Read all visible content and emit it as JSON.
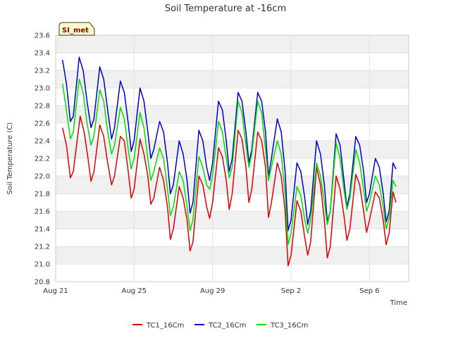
{
  "chart_data": {
    "type": "line",
    "title": "Soil Temperature at -16cm",
    "xlabel": "Time",
    "ylabel": "Soil Temperature (C)",
    "badge": "SI_met",
    "xlim": [
      0,
      18
    ],
    "ylim": [
      20.8,
      23.6
    ],
    "y_ticks": [
      20.8,
      21.0,
      21.2,
      21.4,
      21.6,
      21.8,
      22.0,
      22.2,
      22.4,
      22.6,
      22.8,
      23.0,
      23.2,
      23.4,
      23.6
    ],
    "x_ticks": [
      {
        "day": 0,
        "label": "Aug 21"
      },
      {
        "day": 4,
        "label": "Aug 25"
      },
      {
        "day": 8,
        "label": "Aug 29"
      },
      {
        "day": 12,
        "label": "Sep 2"
      },
      {
        "day": 16,
        "label": "Sep 6"
      }
    ],
    "grid": true,
    "legend_position": "bottom",
    "series": [
      {
        "name": "TC1_16Cm",
        "color": "#dd0000",
        "points": [
          [
            0.35,
            22.55
          ],
          [
            0.55,
            22.35
          ],
          [
            0.75,
            21.98
          ],
          [
            0.9,
            22.05
          ],
          [
            1.25,
            22.68
          ],
          [
            1.45,
            22.5
          ],
          [
            1.65,
            22.2
          ],
          [
            1.8,
            21.94
          ],
          [
            1.95,
            22.05
          ],
          [
            2.25,
            22.58
          ],
          [
            2.45,
            22.45
          ],
          [
            2.65,
            22.15
          ],
          [
            2.85,
            21.9
          ],
          [
            3.0,
            22.0
          ],
          [
            3.3,
            22.45
          ],
          [
            3.5,
            22.4
          ],
          [
            3.7,
            22.05
          ],
          [
            3.85,
            21.75
          ],
          [
            4.0,
            21.85
          ],
          [
            4.3,
            22.42
          ],
          [
            4.5,
            22.25
          ],
          [
            4.7,
            22.0
          ],
          [
            4.85,
            21.68
          ],
          [
            5.0,
            21.75
          ],
          [
            5.3,
            22.1
          ],
          [
            5.5,
            21.95
          ],
          [
            5.7,
            21.65
          ],
          [
            5.85,
            21.28
          ],
          [
            6.0,
            21.4
          ],
          [
            6.3,
            21.88
          ],
          [
            6.5,
            21.75
          ],
          [
            6.7,
            21.5
          ],
          [
            6.85,
            21.15
          ],
          [
            7.0,
            21.25
          ],
          [
            7.3,
            22.0
          ],
          [
            7.5,
            21.9
          ],
          [
            7.7,
            21.65
          ],
          [
            7.85,
            21.52
          ],
          [
            8.0,
            21.7
          ],
          [
            8.3,
            22.32
          ],
          [
            8.5,
            22.22
          ],
          [
            8.7,
            21.95
          ],
          [
            8.85,
            21.62
          ],
          [
            9.0,
            21.8
          ],
          [
            9.3,
            22.52
          ],
          [
            9.5,
            22.42
          ],
          [
            9.7,
            22.1
          ],
          [
            9.85,
            21.7
          ],
          [
            10.0,
            21.85
          ],
          [
            10.3,
            22.5
          ],
          [
            10.5,
            22.4
          ],
          [
            10.7,
            22.1
          ],
          [
            10.85,
            21.53
          ],
          [
            11.0,
            21.7
          ],
          [
            11.3,
            22.15
          ],
          [
            11.5,
            22.0
          ],
          [
            11.7,
            21.6
          ],
          [
            11.85,
            20.98
          ],
          [
            12.0,
            21.1
          ],
          [
            12.3,
            21.72
          ],
          [
            12.5,
            21.6
          ],
          [
            12.7,
            21.3
          ],
          [
            12.85,
            21.1
          ],
          [
            13.0,
            21.25
          ],
          [
            13.3,
            22.1
          ],
          [
            13.5,
            21.9
          ],
          [
            13.7,
            21.5
          ],
          [
            13.85,
            21.07
          ],
          [
            14.0,
            21.2
          ],
          [
            14.3,
            22.0
          ],
          [
            14.5,
            21.85
          ],
          [
            14.7,
            21.55
          ],
          [
            14.85,
            21.27
          ],
          [
            15.0,
            21.4
          ],
          [
            15.3,
            22.02
          ],
          [
            15.5,
            21.9
          ],
          [
            15.7,
            21.6
          ],
          [
            15.85,
            21.36
          ],
          [
            16.0,
            21.5
          ],
          [
            16.3,
            21.82
          ],
          [
            16.5,
            21.75
          ],
          [
            16.7,
            21.5
          ],
          [
            16.85,
            21.22
          ],
          [
            17.0,
            21.35
          ],
          [
            17.2,
            21.82
          ],
          [
            17.35,
            21.7
          ]
        ]
      },
      {
        "name": "TC2_16Cm",
        "color": "#0000cc",
        "points": [
          [
            0.35,
            23.32
          ],
          [
            0.55,
            23.05
          ],
          [
            0.75,
            22.62
          ],
          [
            0.9,
            22.68
          ],
          [
            1.2,
            23.35
          ],
          [
            1.4,
            23.2
          ],
          [
            1.6,
            22.85
          ],
          [
            1.8,
            22.55
          ],
          [
            1.95,
            22.65
          ],
          [
            2.25,
            23.24
          ],
          [
            2.45,
            23.1
          ],
          [
            2.65,
            22.75
          ],
          [
            2.85,
            22.42
          ],
          [
            3.0,
            22.55
          ],
          [
            3.3,
            23.08
          ],
          [
            3.5,
            22.95
          ],
          [
            3.7,
            22.6
          ],
          [
            3.85,
            22.28
          ],
          [
            4.0,
            22.4
          ],
          [
            4.3,
            23.0
          ],
          [
            4.5,
            22.85
          ],
          [
            4.7,
            22.5
          ],
          [
            4.85,
            22.2
          ],
          [
            5.0,
            22.3
          ],
          [
            5.3,
            22.62
          ],
          [
            5.5,
            22.5
          ],
          [
            5.7,
            22.15
          ],
          [
            5.85,
            21.8
          ],
          [
            6.0,
            21.9
          ],
          [
            6.3,
            22.4
          ],
          [
            6.5,
            22.25
          ],
          [
            6.7,
            21.95
          ],
          [
            6.85,
            21.58
          ],
          [
            7.0,
            21.7
          ],
          [
            7.3,
            22.52
          ],
          [
            7.5,
            22.4
          ],
          [
            7.7,
            22.1
          ],
          [
            7.85,
            21.95
          ],
          [
            8.0,
            22.15
          ],
          [
            8.3,
            22.85
          ],
          [
            8.5,
            22.75
          ],
          [
            8.7,
            22.4
          ],
          [
            8.85,
            22.05
          ],
          [
            9.0,
            22.2
          ],
          [
            9.3,
            22.95
          ],
          [
            9.5,
            22.85
          ],
          [
            9.7,
            22.5
          ],
          [
            9.85,
            22.15
          ],
          [
            10.0,
            22.3
          ],
          [
            10.3,
            22.95
          ],
          [
            10.5,
            22.85
          ],
          [
            10.7,
            22.5
          ],
          [
            10.85,
            22.0
          ],
          [
            11.0,
            22.2
          ],
          [
            11.3,
            22.65
          ],
          [
            11.5,
            22.5
          ],
          [
            11.7,
            22.05
          ],
          [
            11.85,
            21.38
          ],
          [
            12.0,
            21.5
          ],
          [
            12.3,
            22.15
          ],
          [
            12.5,
            22.05
          ],
          [
            12.7,
            21.75
          ],
          [
            12.85,
            21.45
          ],
          [
            13.0,
            21.6
          ],
          [
            13.3,
            22.4
          ],
          [
            13.5,
            22.25
          ],
          [
            13.7,
            21.9
          ],
          [
            13.85,
            21.48
          ],
          [
            14.0,
            21.6
          ],
          [
            14.3,
            22.48
          ],
          [
            14.5,
            22.35
          ],
          [
            14.7,
            21.95
          ],
          [
            14.85,
            21.65
          ],
          [
            15.0,
            21.8
          ],
          [
            15.3,
            22.45
          ],
          [
            15.5,
            22.35
          ],
          [
            15.7,
            22.05
          ],
          [
            15.85,
            21.7
          ],
          [
            16.0,
            21.8
          ],
          [
            16.3,
            22.2
          ],
          [
            16.5,
            22.1
          ],
          [
            16.7,
            21.8
          ],
          [
            16.85,
            21.48
          ],
          [
            17.0,
            21.6
          ],
          [
            17.2,
            22.15
          ],
          [
            17.35,
            22.08
          ]
        ]
      },
      {
        "name": "TC3_16Cm",
        "color": "#00dd00",
        "points": [
          [
            0.35,
            23.05
          ],
          [
            0.55,
            22.75
          ],
          [
            0.75,
            22.42
          ],
          [
            0.9,
            22.5
          ],
          [
            1.2,
            23.1
          ],
          [
            1.4,
            22.95
          ],
          [
            1.6,
            22.6
          ],
          [
            1.8,
            22.35
          ],
          [
            1.95,
            22.45
          ],
          [
            2.25,
            22.98
          ],
          [
            2.45,
            22.85
          ],
          [
            2.65,
            22.5
          ],
          [
            2.85,
            22.25
          ],
          [
            3.0,
            22.35
          ],
          [
            3.3,
            22.78
          ],
          [
            3.5,
            22.65
          ],
          [
            3.7,
            22.3
          ],
          [
            3.85,
            22.08
          ],
          [
            4.0,
            22.2
          ],
          [
            4.3,
            22.72
          ],
          [
            4.5,
            22.55
          ],
          [
            4.7,
            22.2
          ],
          [
            4.85,
            21.95
          ],
          [
            5.0,
            22.05
          ],
          [
            5.3,
            22.32
          ],
          [
            5.5,
            22.2
          ],
          [
            5.7,
            21.85
          ],
          [
            5.85,
            21.55
          ],
          [
            6.0,
            21.65
          ],
          [
            6.3,
            22.05
          ],
          [
            6.5,
            21.95
          ],
          [
            6.7,
            21.65
          ],
          [
            6.85,
            21.38
          ],
          [
            7.0,
            21.5
          ],
          [
            7.3,
            22.22
          ],
          [
            7.5,
            22.1
          ],
          [
            7.7,
            21.9
          ],
          [
            7.85,
            21.85
          ],
          [
            8.0,
            22.0
          ],
          [
            8.3,
            22.62
          ],
          [
            8.5,
            22.5
          ],
          [
            8.7,
            22.2
          ],
          [
            8.85,
            21.98
          ],
          [
            9.0,
            22.1
          ],
          [
            9.3,
            22.85
          ],
          [
            9.5,
            22.72
          ],
          [
            9.7,
            22.35
          ],
          [
            9.85,
            22.1
          ],
          [
            10.0,
            22.25
          ],
          [
            10.3,
            22.85
          ],
          [
            10.5,
            22.72
          ],
          [
            10.7,
            22.3
          ],
          [
            10.85,
            21.95
          ],
          [
            11.0,
            22.1
          ],
          [
            11.3,
            22.4
          ],
          [
            11.5,
            22.25
          ],
          [
            11.7,
            21.8
          ],
          [
            11.85,
            21.22
          ],
          [
            12.0,
            21.35
          ],
          [
            12.3,
            21.88
          ],
          [
            12.5,
            21.78
          ],
          [
            12.7,
            21.5
          ],
          [
            12.85,
            21.35
          ],
          [
            13.0,
            21.5
          ],
          [
            13.3,
            22.15
          ],
          [
            13.5,
            22.0
          ],
          [
            13.7,
            21.7
          ],
          [
            13.85,
            21.45
          ],
          [
            14.0,
            21.6
          ],
          [
            14.3,
            22.38
          ],
          [
            14.5,
            22.2
          ],
          [
            14.7,
            21.85
          ],
          [
            14.85,
            21.62
          ],
          [
            15.0,
            21.75
          ],
          [
            15.3,
            22.3
          ],
          [
            15.5,
            22.15
          ],
          [
            15.7,
            21.85
          ],
          [
            15.85,
            21.6
          ],
          [
            16.0,
            21.7
          ],
          [
            16.3,
            22.0
          ],
          [
            16.5,
            21.9
          ],
          [
            16.7,
            21.65
          ],
          [
            16.85,
            21.4
          ],
          [
            17.0,
            21.52
          ],
          [
            17.2,
            21.95
          ],
          [
            17.35,
            21.88
          ]
        ]
      }
    ]
  }
}
